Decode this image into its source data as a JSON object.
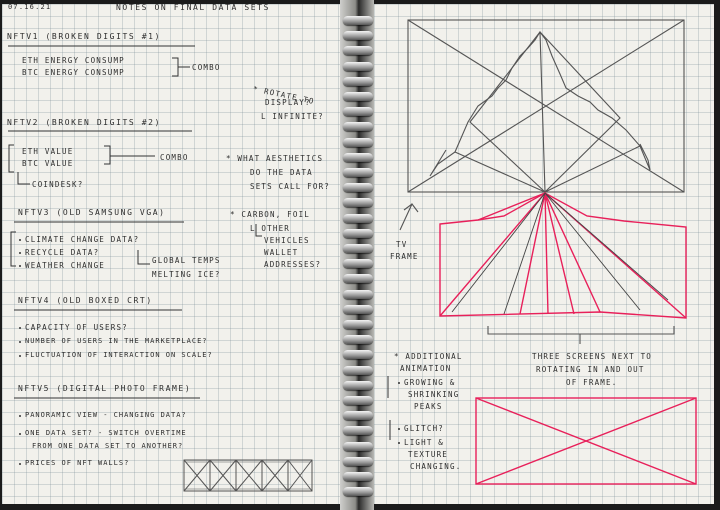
{
  "date": "07.16.21",
  "page_title": "NOTES ON FINAL DATA SETS",
  "sections": {
    "nftv1": {
      "heading": "NFTV1 (BROKEN DIGITS #1)",
      "lines": [
        "ETH ENERGY CONSUMP",
        "BTC ENERGY CONSUMP"
      ],
      "tag": "COMBO",
      "note": [
        "* ROTATE TO",
        "DISPLAY?",
        "L INFINITE?"
      ]
    },
    "nftv2": {
      "heading": "NFTV2 (BROKEN DIGITS #2)",
      "lines": [
        "ETH VALUE",
        "BTC VALUE"
      ],
      "tag": "COMBO",
      "sub": "COINDESK?",
      "note": [
        "* WHAT AESTHETICS",
        "DO THE DATA",
        "SETS CALL FOR?"
      ]
    },
    "nftv3": {
      "heading": "NFTV3 (OLD SAMSUNG VGA)",
      "bullets": [
        "CLIMATE CHANGE DATA?",
        "RECYCLE DATA?",
        "WEATHER CHANGE"
      ],
      "sub": [
        "GLOBAL TEMPS",
        "MELTING ICE?"
      ],
      "note": [
        "* CARBON, FOIL",
        "L OTHER",
        "VEHICLES",
        "WALLET",
        "ADDRESSES?"
      ]
    },
    "nftv4": {
      "heading": "NFTV4 (OLD BOXED CRT)",
      "bullets": [
        "CAPACITY OF USERS?",
        "NUMBER OF USERS IN THE MARKETPLACE?",
        "FLUCTUATION OF INTERACTION ON SCALE?"
      ]
    },
    "nftv5": {
      "heading": "NFTV5 (DIGITAL PHOTO FRAME)",
      "bullets": [
        "PANORAMIC VIEW - CHANGING DATA?",
        "ONE DATA SET? - SWITCH OVERTIME",
        "FROM ONE DATA SET TO ANOTHER?",
        "PRICES OF NFT WALLS?"
      ]
    }
  },
  "right_page": {
    "tv_label": [
      "TV",
      "FRAME"
    ],
    "caption": [
      "THREE SCREENS NEXT TO",
      "ROTATING IN AND OUT",
      "OF FRAME."
    ],
    "additional": [
      "* ADDITIONAL",
      "ANIMATION",
      "GROWING &",
      "SHRINKING",
      "PEAKS",
      "GLITCH?",
      "LIGHT &",
      "TEXTURE",
      "CHANGING."
    ]
  },
  "colors": {
    "ink": "#2d2d2d",
    "pencil": "#555555",
    "red": "#e8205a",
    "paper": "#f2f1ec"
  }
}
